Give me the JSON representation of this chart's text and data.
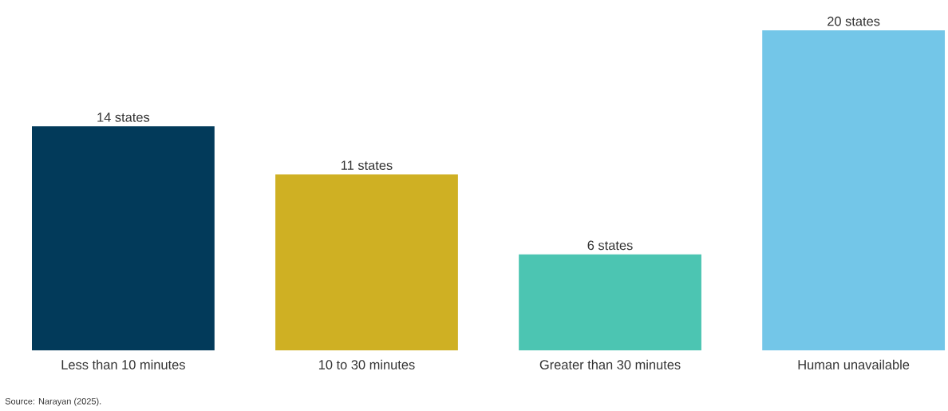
{
  "chart_data": {
    "type": "bar",
    "categories": [
      "Less than 10 minutes",
      "10 to 30 minutes",
      "Greater than 30 minutes",
      "Human unavailable"
    ],
    "values": [
      14,
      11,
      6,
      20
    ],
    "colors": [
      "#023a5a",
      "#cfb023",
      "#4cc5b2",
      "#73c6e8"
    ],
    "value_labels": [
      "14 states",
      "11 states",
      "6 states",
      "20 states"
    ],
    "annotations": [
      "Source: Narayan (2025)."
    ]
  }
}
